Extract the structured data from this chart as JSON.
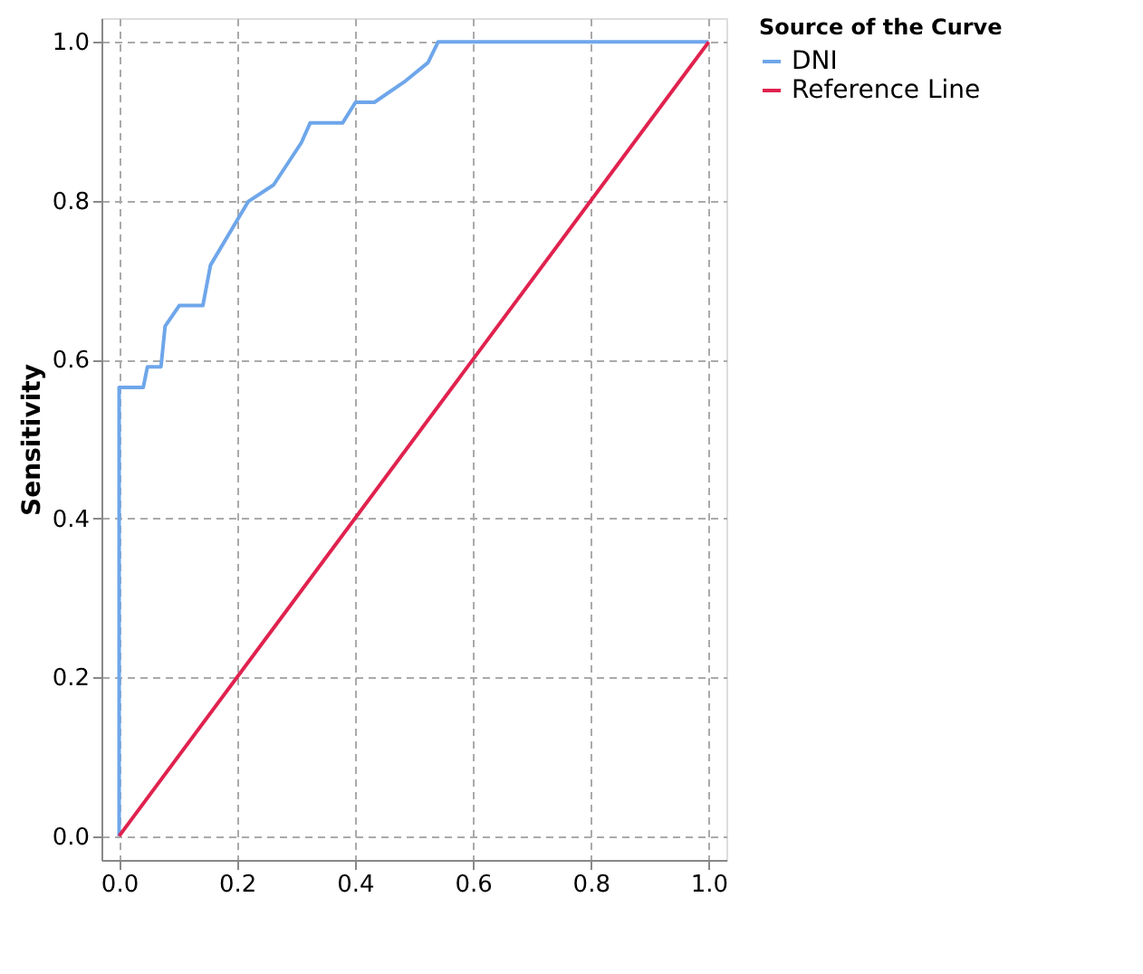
{
  "chart_data": {
    "type": "line",
    "ylabel": "Sensitivity",
    "legend_title": "Source of the Curve",
    "legend": "top right",
    "grid": true,
    "marker": "none",
    "line_style": "solid",
    "xlim": [
      -0.03,
      1.03
    ],
    "ylim": [
      -0.03,
      1.03
    ],
    "xticks": [
      {
        "value": 0,
        "label": "0.0"
      },
      0.2,
      0.4,
      0.6,
      0.8,
      {
        "value": 1,
        "label": "1.0"
      }
    ],
    "yticks": [
      {
        "value": 0,
        "label": "0.0"
      },
      0.2,
      0.4,
      0.6,
      0.8,
      {
        "value": 1,
        "label": "1.0"
      }
    ],
    "series": [
      {
        "name": "DNI",
        "color": "#6ea6ea",
        "x": [
          0,
          0,
          0.041,
          0.048,
          0.071,
          0.078,
          0.102,
          0.142,
          0.155,
          0.219,
          0.262,
          0.309,
          0.324,
          0.379,
          0.401,
          0.433,
          0.486,
          0.524,
          0.541,
          1.0
        ],
        "values": [
          0,
          0.565,
          0.565,
          0.591,
          0.591,
          0.642,
          0.668,
          0.668,
          0.719,
          0.799,
          0.82,
          0.873,
          0.898,
          0.898,
          0.924,
          0.924,
          0.951,
          0.974,
          1.0,
          1.0
        ]
      },
      {
        "name": "Reference Line",
        "color": "#e0224e",
        "x": [
          0,
          1.0
        ],
        "values": [
          0,
          1.0
        ]
      }
    ]
  }
}
